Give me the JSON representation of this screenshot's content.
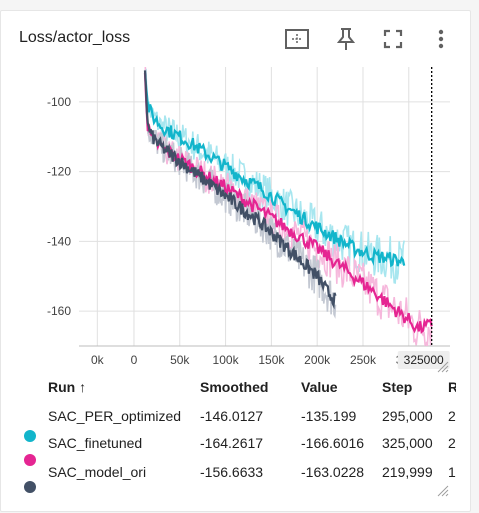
{
  "card": {
    "title": "Loss/actor_loss"
  },
  "toolbar": {
    "fit_icon": "fit-domain-icon",
    "pin_icon": "pin-icon",
    "fullscreen_icon": "fullscreen-icon",
    "more_icon": "more-vert-icon"
  },
  "chart_data": {
    "type": "line",
    "title": "",
    "xlabel": "",
    "ylabel": "",
    "xlim": [
      -60000,
      345000
    ],
    "ylim": [
      -170,
      -90
    ],
    "x_ticks": [
      "0k",
      "0",
      "50k",
      "100k",
      "150k",
      "200k",
      "250k",
      "300k"
    ],
    "x_tick_values": [
      -40000,
      0,
      50000,
      100000,
      150000,
      200000,
      250000,
      300000
    ],
    "y_ticks": [
      "-100",
      "-120",
      "-140",
      "-160"
    ],
    "y_tick_values": [
      -100,
      -120,
      -140,
      -160
    ],
    "hover_step_label": "325000",
    "hover_step": 325000,
    "series": [
      {
        "name": "SAC_PER_optimized",
        "color": "#12b5cb",
        "x": [
          12000,
          15000,
          20000,
          30000,
          40000,
          50000,
          60000,
          80000,
          100000,
          120000,
          140000,
          160000,
          180000,
          200000,
          220000,
          240000,
          260000,
          280000,
          295000
        ],
        "y": [
          -90,
          -101,
          -104,
          -107,
          -108.5,
          -110,
          -111.5,
          -115,
          -118.5,
          -122,
          -125,
          -129,
          -132.5,
          -136,
          -139,
          -142,
          -144,
          -145,
          -146
        ]
      },
      {
        "name": "SAC_finetuned",
        "color": "#e52592",
        "x": [
          12000,
          15000,
          20000,
          30000,
          40000,
          60000,
          80000,
          100000,
          120000,
          140000,
          160000,
          180000,
          200000,
          220000,
          240000,
          260000,
          280000,
          300000,
          310000,
          325000
        ],
        "y": [
          -90,
          -108,
          -111,
          -113,
          -115,
          -118,
          -121.5,
          -124.5,
          -128,
          -131.5,
          -135,
          -138.5,
          -142,
          -146,
          -150,
          -154,
          -158.5,
          -162.5,
          -165,
          -164
        ]
      },
      {
        "name": "SAC_model_ori",
        "color": "#425066",
        "x": [
          12000,
          15000,
          20000,
          30000,
          40000,
          60000,
          80000,
          100000,
          120000,
          140000,
          160000,
          180000,
          200000,
          210000,
          219999
        ],
        "y": [
          -90,
          -107,
          -110,
          -113,
          -115,
          -119,
          -123,
          -127,
          -131,
          -135,
          -140,
          -145,
          -150,
          -154,
          -157
        ]
      }
    ]
  },
  "table": {
    "columns": [
      "Run ↑",
      "Smoothed",
      "Value",
      "Step",
      "R"
    ],
    "rows": [
      {
        "name": "SAC_PER_optimized",
        "color": "#12b5cb",
        "smoothed": "-146.0127",
        "value": "-135.199",
        "step": "295,000",
        "rel": "2"
      },
      {
        "name": "SAC_finetuned",
        "color": "#e52592",
        "smoothed": "-164.2617",
        "value": "-166.6016",
        "step": "325,000",
        "rel": "2"
      },
      {
        "name": "SAC_model_ori",
        "color": "#425066",
        "smoothed": "-156.6633",
        "value": "-163.0228",
        "step": "219,999",
        "rel": "1"
      }
    ]
  }
}
